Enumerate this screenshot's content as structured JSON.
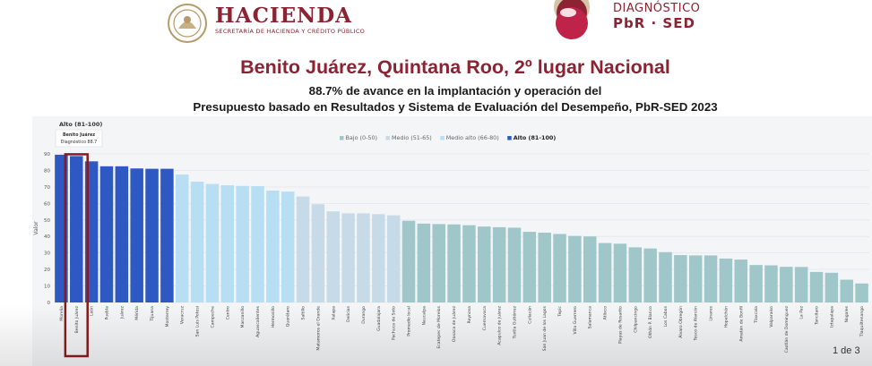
{
  "header": {
    "logo_left_title": "HACIENDA",
    "logo_left_subtitle": "SECRETARÍA DE HACIENDA Y CRÉDITO PÚBLICO",
    "logo_right_line1": "DIAGNÓSTICO",
    "logo_right_line2": "PbR · SED"
  },
  "headline": "Benito Juárez, Quintana Roo, 2º lugar Nacional",
  "subheadline_1": "88.7% de avance en la implantación y operación del",
  "subheadline_2": "Presupuesto basado en Resultados y Sistema de Evaluación del Desempeño, PbR-SED 2023",
  "tooltip": {
    "title": "Alto (81-100)",
    "name": "Benito Juárez",
    "value_label": "Diagnóstico 88.7"
  },
  "page_counter": "1 de 3",
  "colors": {
    "accent": "#8b2332",
    "bajo": "#9fc7c9",
    "medio": "#c6dbe7",
    "medio_alto": "#b8def4",
    "alto": "#2f59c2",
    "highlight": "#8b1a1a"
  },
  "chart_data": {
    "type": "bar",
    "ylabel": "Valor",
    "ylim": [
      0,
      90
    ],
    "yticks": [
      0,
      10,
      20,
      30,
      40,
      50,
      60,
      70,
      80,
      90
    ],
    "legend_position": "top-right",
    "legend": [
      {
        "label": "Bajo (0-50)",
        "key": "bajo"
      },
      {
        "label": "Medio (51-65)",
        "key": "medio"
      },
      {
        "label": "Medio alto (66-80)",
        "key": "medio_alto"
      },
      {
        "label": "Alto (81-100)",
        "key": "alto"
      }
    ],
    "highlight_index": 1,
    "categories": [
      "Morelia",
      "Benito Juárez",
      "León",
      "Puebla",
      "Juárez",
      "Mérida",
      "Tijuana",
      "Monterrey",
      "Veracruz",
      "San Luis Potosí",
      "Campeche",
      "Centro",
      "Manzanillo",
      "Aguascalientes",
      "Hermosillo",
      "Querétaro",
      "Saltillo",
      "Matamoros el Grande",
      "Xalapa",
      "Delicias",
      "Durango",
      "Guadalajara",
      "Pachuca de Soto",
      "Promedio local",
      "Naucalpa",
      "Ecatepec de Morelos",
      "Oaxaca de Juárez",
      "Reynosa",
      "Cuernavaca",
      "Acapulco de Juárez",
      "Tuxtla Gutiérrez",
      "Culiacán",
      "San Juan de los Lagos",
      "Tepic",
      "Villa Guerrero",
      "Salamanca",
      "Atlixco",
      "Playas de Rosarito",
      "Chilpancingo",
      "Othón P. Blanco",
      "Los Cabos",
      "Álvaro Obregón",
      "Tesco de Alarcón",
      "Linares",
      "Hopelchén",
      "Amatán de Bonfil",
      "Tlaxcala",
      "Valparaíso",
      "Caotlán de Domínguez",
      "La Paz",
      "Tancítaro",
      "Iztapalapa",
      "Nogales",
      "Tlaquiltenango"
    ],
    "values": [
      89.5,
      88.7,
      85.5,
      82.5,
      82.5,
      81.2,
      81.0,
      81.0,
      77.5,
      73.2,
      71.8,
      71.0,
      70.6,
      70.5,
      67.8,
      67.2,
      64.2,
      59.5,
      55.2,
      54.0,
      54.0,
      53.5,
      52.8,
      49.5,
      47.8,
      47.5,
      47.3,
      46.8,
      46.0,
      45.6,
      45.3,
      42.8,
      42.3,
      41.5,
      40.3,
      40.0,
      36.0,
      35.6,
      33.4,
      32.7,
      30.5,
      28.7,
      28.5,
      28.5,
      26.6,
      26.0,
      22.7,
      22.5,
      21.6,
      21.5,
      18.5,
      18.0,
      13.8,
      11.5
    ],
    "band": [
      "alto",
      "alto",
      "alto",
      "alto",
      "alto",
      "alto",
      "alto",
      "alto",
      "medio_alto",
      "medio_alto",
      "medio_alto",
      "medio_alto",
      "medio_alto",
      "medio_alto",
      "medio_alto",
      "medio_alto",
      "medio",
      "medio",
      "medio",
      "medio",
      "medio",
      "medio",
      "medio",
      "bajo",
      "bajo",
      "bajo",
      "bajo",
      "bajo",
      "bajo",
      "bajo",
      "bajo",
      "bajo",
      "bajo",
      "bajo",
      "bajo",
      "bajo",
      "bajo",
      "bajo",
      "bajo",
      "bajo",
      "bajo",
      "bajo",
      "bajo",
      "bajo",
      "bajo",
      "bajo",
      "bajo",
      "bajo",
      "bajo",
      "bajo",
      "bajo",
      "bajo",
      "bajo",
      "bajo"
    ]
  }
}
